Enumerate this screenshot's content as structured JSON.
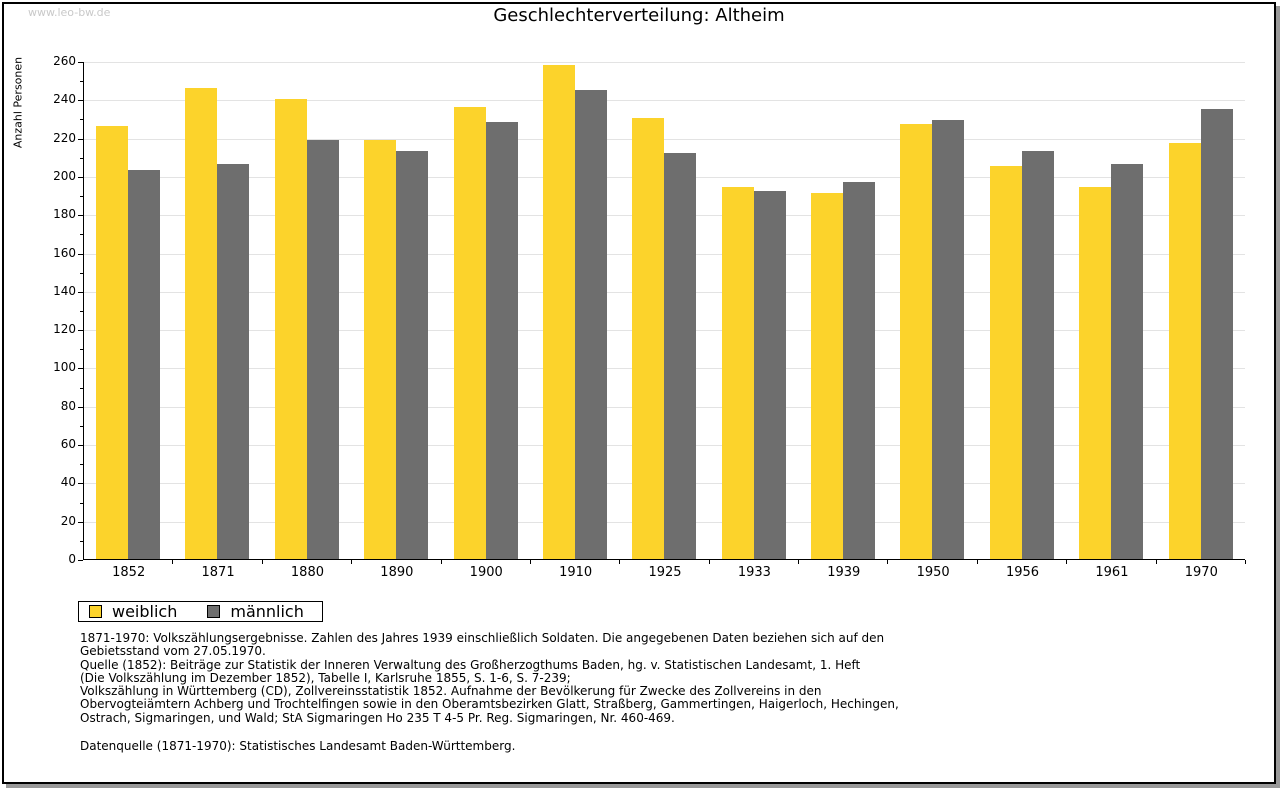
{
  "watermark": "www.leo-bw.de",
  "chart_data": {
    "type": "bar",
    "title": "Geschlechterverteilung: Altheim",
    "xlabel": "",
    "ylabel": "Anzahl Personen",
    "categories": [
      "1852",
      "1871",
      "1880",
      "1890",
      "1900",
      "1910",
      "1925",
      "1933",
      "1939",
      "1950",
      "1956",
      "1961",
      "1970"
    ],
    "series": [
      {
        "name": "weiblich",
        "color": "#fcd32b",
        "values": [
          226,
          246,
          240,
          219,
          236,
          258,
          230,
          194,
          191,
          227,
          205,
          194,
          217
        ]
      },
      {
        "name": "männlich",
        "color": "#6e6e6e",
        "values": [
          203,
          206,
          219,
          213,
          228,
          245,
          212,
          192,
          197,
          229,
          213,
          206,
          235
        ]
      }
    ],
    "ylim": [
      0,
      260
    ],
    "ytick_major": 20,
    "ytick_minor": 10,
    "grid": true,
    "gridline_color": "#e3e3e3",
    "legend_position": "bottom-left"
  },
  "footnotes": {
    "lines": [
      "1871-1970: Volkszählungsergebnisse. Zahlen des Jahres 1939 einschließlich Soldaten. Die angegebenen Daten beziehen sich auf den",
      "Gebietsstand vom 27.05.1970.",
      "Quelle (1852): Beiträge zur Statistik der Inneren Verwaltung des Großherzogthums Baden, hg. v. Statistischen Landesamt, 1. Heft",
      "(Die Volkszählung im Dezember 1852), Tabelle I, Karlsruhe 1855, S. 1-6, S. 7-239;",
      "Volkszählung in Württemberg (CD), Zollvereinsstatistik 1852. Aufnahme der Bevölkerung für Zwecke des Zollvereins in den",
      "Obervogteiämtern Achberg und Trochtelfingen sowie in den Oberamtsbezirken Glatt, Straßberg, Gammertingen, Haigerloch, Hechingen,",
      "Ostrach, Sigmaringen, und Wald; StA Sigmaringen Ho 235 T 4-5 Pr. Reg. Sigmaringen, Nr. 460-469."
    ],
    "datasource": "Datenquelle (1871-1970): Statistisches Landesamt Baden-Württemberg."
  }
}
